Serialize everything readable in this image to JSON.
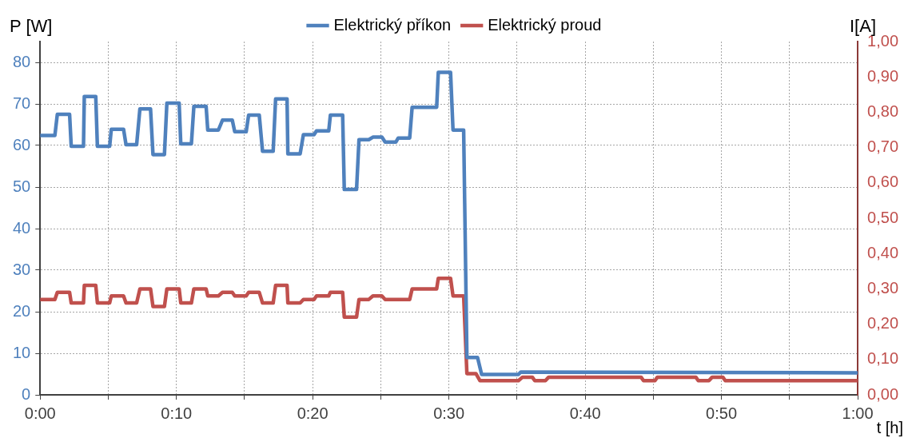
{
  "chart_data": {
    "type": "line",
    "xlabel": "t [h]",
    "ylabel": "P [W]",
    "y2label": "I[A]",
    "xlim": [
      0,
      1
    ],
    "xticks": [
      {
        "value": 0,
        "label": "0:00"
      },
      {
        "value": 0.0833,
        "label": null
      },
      {
        "value": 0.1667,
        "label": "0:10"
      },
      {
        "value": 0.25,
        "label": null
      },
      {
        "value": 0.3333,
        "label": "0:20"
      },
      {
        "value": 0.4167,
        "label": null
      },
      {
        "value": 0.5,
        "label": "0:30"
      },
      {
        "value": 0.5833,
        "label": null
      },
      {
        "value": 0.6667,
        "label": "0:40"
      },
      {
        "value": 0.75,
        "label": null
      },
      {
        "value": 0.8333,
        "label": "0:50"
      },
      {
        "value": 0.9167,
        "label": null
      },
      {
        "value": 1,
        "label": "1:00"
      }
    ],
    "ylim": [
      0,
      85
    ],
    "yticks": [
      0,
      10,
      20,
      30,
      40,
      50,
      60,
      70,
      80
    ],
    "y2lim": [
      0,
      1
    ],
    "y2ticks": [
      {
        "value": 0,
        "label": "0,00"
      },
      {
        "value": 0.1,
        "label": "0,10"
      },
      {
        "value": 0.2,
        "label": "0,20"
      },
      {
        "value": 0.3,
        "label": "0,30"
      },
      {
        "value": 0.4,
        "label": "0,40"
      },
      {
        "value": 0.5,
        "label": "0,50"
      },
      {
        "value": 0.6,
        "label": "0,60"
      },
      {
        "value": 0.7,
        "label": "0,70"
      },
      {
        "value": 0.8,
        "label": "0,80"
      },
      {
        "value": 0.9,
        "label": "0,90"
      },
      {
        "value": 1,
        "label": "1,00"
      }
    ],
    "grid": true,
    "legend": "top",
    "marker": "none",
    "line_style": "solid",
    "series": [
      {
        "name": "Elektrický příkon",
        "color": "#4f81bd",
        "axis": "y",
        "x": [
          0,
          0.018,
          0.021,
          0.036,
          0.038,
          0.053,
          0.054,
          0.068,
          0.07,
          0.085,
          0.087,
          0.102,
          0.105,
          0.118,
          0.122,
          0.135,
          0.138,
          0.152,
          0.155,
          0.17,
          0.172,
          0.185,
          0.188,
          0.203,
          0.205,
          0.218,
          0.223,
          0.235,
          0.238,
          0.252,
          0.255,
          0.268,
          0.272,
          0.285,
          0.288,
          0.302,
          0.303,
          0.318,
          0.322,
          0.335,
          0.338,
          0.353,
          0.355,
          0.37,
          0.372,
          0.387,
          0.39,
          0.402,
          0.407,
          0.418,
          0.422,
          0.435,
          0.438,
          0.452,
          0.455,
          0.485,
          0.487,
          0.502,
          0.505,
          0.518,
          0.522,
          0.535,
          0.54,
          0.585,
          0.588,
          1
        ],
        "values": [
          62.4,
          62.4,
          67.5,
          67.5,
          59.8,
          59.8,
          71.8,
          71.8,
          59.8,
          59.8,
          63.9,
          63.9,
          60.2,
          60.2,
          68.8,
          68.8,
          57.8,
          57.8,
          70.2,
          70.2,
          60.4,
          60.4,
          69.4,
          69.4,
          63.7,
          63.7,
          66.1,
          66.1,
          63.3,
          63.3,
          67.3,
          67.3,
          58.6,
          58.6,
          71.2,
          71.2,
          58,
          58,
          62.6,
          62.6,
          63.5,
          63.5,
          67.3,
          67.3,
          49.4,
          49.4,
          61.4,
          61.4,
          62,
          62,
          60.8,
          60.8,
          61.8,
          61.8,
          69.2,
          69.2,
          77.6,
          77.6,
          63.7,
          63.7,
          9,
          9,
          4.9,
          4.9,
          5.5,
          5.3
        ]
      },
      {
        "name": "Elektrický proud",
        "color": "#c0504d",
        "axis": "y2",
        "x": [
          0,
          0.018,
          0.021,
          0.036,
          0.038,
          0.053,
          0.054,
          0.068,
          0.07,
          0.085,
          0.087,
          0.102,
          0.105,
          0.118,
          0.122,
          0.135,
          0.138,
          0.152,
          0.155,
          0.17,
          0.172,
          0.185,
          0.188,
          0.203,
          0.205,
          0.218,
          0.223,
          0.235,
          0.238,
          0.252,
          0.255,
          0.268,
          0.272,
          0.285,
          0.288,
          0.302,
          0.303,
          0.318,
          0.322,
          0.335,
          0.338,
          0.353,
          0.355,
          0.37,
          0.372,
          0.387,
          0.39,
          0.402,
          0.407,
          0.418,
          0.422,
          0.435,
          0.438,
          0.452,
          0.455,
          0.485,
          0.487,
          0.502,
          0.505,
          0.518,
          0.522,
          0.533,
          0.538,
          0.585,
          0.59,
          0.602,
          0.605,
          0.618,
          0.622,
          0.735,
          0.738,
          0.752,
          0.755,
          0.802,
          0.805,
          0.818,
          0.822,
          0.835,
          0.838,
          1
        ],
        "values": [
          0.27,
          0.27,
          0.29,
          0.29,
          0.26,
          0.26,
          0.31,
          0.31,
          0.26,
          0.26,
          0.28,
          0.28,
          0.26,
          0.26,
          0.3,
          0.3,
          0.25,
          0.25,
          0.3,
          0.3,
          0.26,
          0.26,
          0.3,
          0.3,
          0.28,
          0.28,
          0.29,
          0.29,
          0.28,
          0.28,
          0.29,
          0.29,
          0.26,
          0.26,
          0.31,
          0.31,
          0.26,
          0.26,
          0.27,
          0.27,
          0.28,
          0.28,
          0.29,
          0.29,
          0.22,
          0.22,
          0.27,
          0.27,
          0.28,
          0.28,
          0.27,
          0.27,
          0.27,
          0.27,
          0.3,
          0.3,
          0.33,
          0.33,
          0.28,
          0.28,
          0.06,
          0.06,
          0.04,
          0.04,
          0.05,
          0.05,
          0.04,
          0.04,
          0.05,
          0.05,
          0.04,
          0.04,
          0.05,
          0.05,
          0.04,
          0.04,
          0.05,
          0.05,
          0.04,
          0.04
        ]
      }
    ]
  }
}
